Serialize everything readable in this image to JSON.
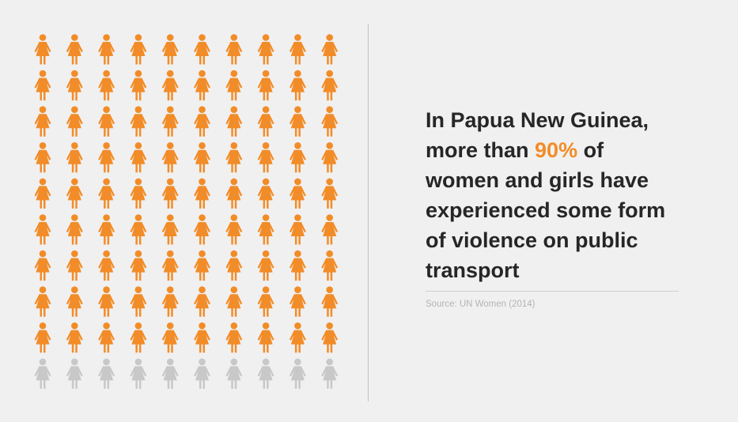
{
  "headline": {
    "line1": "In Papua New Guinea,",
    "line2_prefix": "more than ",
    "highlight": "90%",
    "line2_suffix": " of",
    "line3": "women and girls have",
    "line4": "experienced some form",
    "line5": "of violence on public",
    "line6": "transport"
  },
  "source": "Source: UN Women (2014)",
  "colors": {
    "accent": "#f28c28",
    "neutral": "#c8c8c8",
    "text": "#262626",
    "background": "#f0f0f0"
  },
  "chart_data": {
    "type": "pictogram",
    "icon": "woman-icon",
    "total_icons": 100,
    "highlighted_icons": 90,
    "value_percent": 90,
    "grid": {
      "rows": 10,
      "columns": 10
    }
  }
}
